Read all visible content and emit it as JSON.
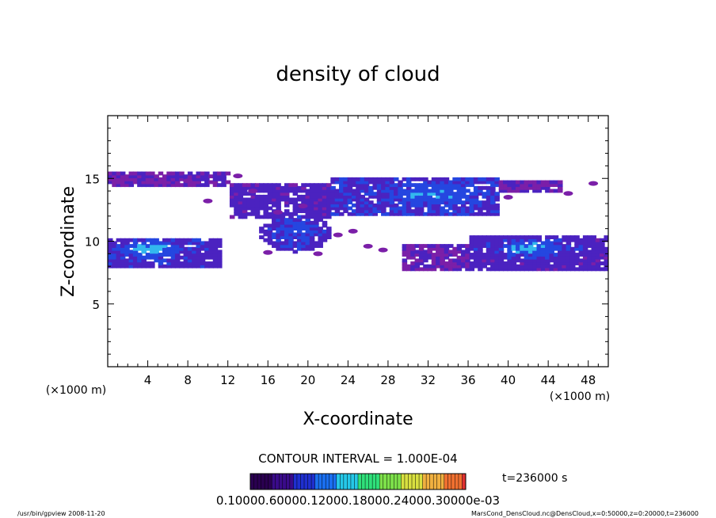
{
  "chart_data": {
    "type": "heatmap",
    "title": "density of cloud",
    "xlabel": "X-coordinate",
    "ylabel": "Z-coordinate",
    "xunit": "(×1000 m)",
    "zunit": "(×1000 m)",
    "xlim": [
      0,
      50
    ],
    "ylim": [
      0,
      20
    ],
    "x_ticks": [
      4,
      8,
      12,
      16,
      20,
      24,
      28,
      32,
      36,
      40,
      44,
      48
    ],
    "y_ticks": [
      5,
      10,
      15
    ],
    "contour_interval": "CONTOUR INTERVAL = 1.000E-04",
    "time_label": "t=236000 s",
    "colorbar_labels": "0.10000.60000.12000.18000.24000.30000e-03",
    "colorbar_colors": [
      "#2a0050",
      "#3a0b8a",
      "#1f2fd0",
      "#1a6ff0",
      "#25c8e8",
      "#2fe07a",
      "#7de04a",
      "#d8e040",
      "#f0b040",
      "#f07030",
      "#e03030"
    ],
    "cloud_colors": {
      "low": "#7b1fa8",
      "mid": "#4b22c0",
      "high": "#2546e0",
      "peak": "#33b8ee"
    },
    "regions": [
      {
        "name": "upper-layer",
        "band": [
          11.5,
          15.0
        ]
      },
      {
        "name": "lower-left-layer",
        "band": [
          7.8,
          10.2
        ]
      },
      {
        "name": "lower-right-layer",
        "band": [
          7.6,
          10.3
        ]
      }
    ]
  },
  "footer": {
    "left": "/usr/bin/gpview  2008-11-20",
    "right": "MarsCond_DensCloud.nc@DensCloud,x=0:50000,z=0:20000,t=236000"
  }
}
